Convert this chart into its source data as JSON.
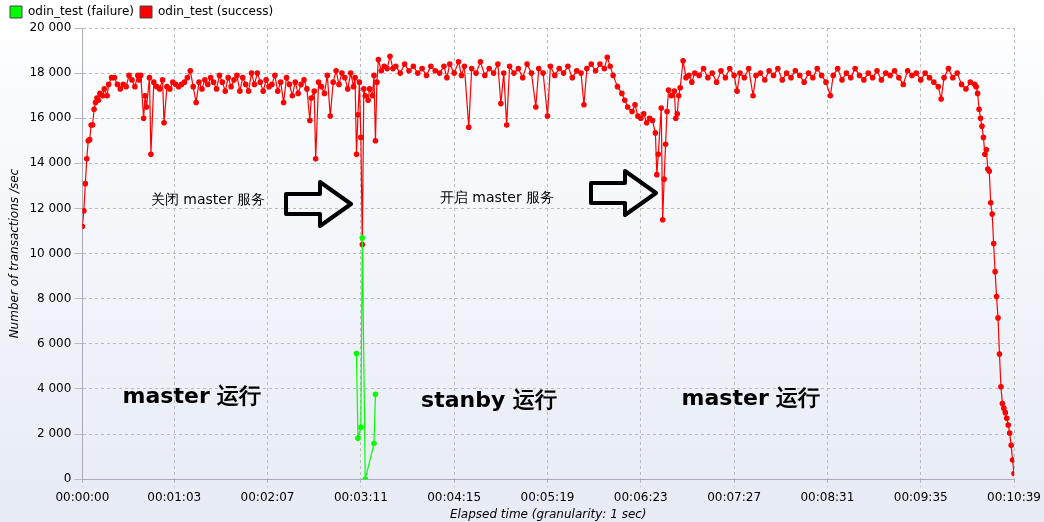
{
  "chart_data": {
    "type": "line",
    "xlabel": "Elapsed time (granularity: 1 sec)",
    "ylabel": "Number of transactions /sec",
    "xlim": [
      0,
      639
    ],
    "xticks": [
      {
        "value": 0,
        "label": "00:00:00"
      },
      {
        "value": 63,
        "label": "00:01:03"
      },
      {
        "value": 127,
        "label": "00:02:07"
      },
      {
        "value": 191,
        "label": "00:03:11"
      },
      {
        "value": 255,
        "label": "00:04:15"
      },
      {
        "value": 319,
        "label": "00:05:19"
      },
      {
        "value": 383,
        "label": "00:06:23"
      },
      {
        "value": 447,
        "label": "00:07:27"
      },
      {
        "value": 511,
        "label": "00:08:31"
      },
      {
        "value": 575,
        "label": "00:09:35"
      },
      {
        "value": 639,
        "label": "00:10:39"
      }
    ],
    "ylim": [
      0,
      20000
    ],
    "yticks": [
      0,
      {
        "value": 2000,
        "label": "2 000"
      },
      {
        "value": 4000,
        "label": "4 000"
      },
      {
        "value": 6000,
        "label": "6 000"
      },
      {
        "value": 8000,
        "label": "8 000"
      },
      {
        "value": 10000,
        "label": "10 000"
      },
      {
        "value": 12000,
        "label": "12 000"
      },
      {
        "value": 14000,
        "label": "14 000"
      },
      {
        "value": 16000,
        "label": "16 000"
      },
      {
        "value": 18000,
        "label": "18 000"
      },
      {
        "value": 20000,
        "label": "20 000"
      }
    ],
    "grid": true,
    "legend": "top left",
    "marker": "circle",
    "line_style": "solid",
    "series": [
      {
        "name": "odin_test (failure)",
        "color": "#00ff00",
        "x": [
          188,
          189,
          191,
          192,
          194,
          200,
          201
        ],
        "values": [
          5570,
          1820,
          2300,
          10700,
          0,
          1580,
          3760
        ]
      },
      {
        "name": "odin_test (success)",
        "color": "#ff0000",
        "x": [
          0,
          1,
          2,
          3,
          4,
          5,
          6,
          7,
          8,
          9,
          10,
          11,
          12,
          14,
          15,
          17,
          18,
          20,
          22,
          24,
          26,
          28,
          30,
          32,
          34,
          36,
          38,
          39,
          40,
          42,
          43,
          44,
          46,
          47,
          49,
          51,
          53,
          55,
          56,
          58,
          60,
          62,
          64,
          66,
          68,
          70,
          72,
          74,
          76,
          78,
          80,
          82,
          84,
          86,
          88,
          90,
          92,
          94,
          96,
          98,
          100,
          102,
          104,
          106,
          108,
          110,
          112,
          114,
          116,
          118,
          120,
          122,
          124,
          126,
          128,
          130,
          132,
          134,
          136,
          138,
          140,
          142,
          144,
          146,
          148,
          150,
          152,
          154,
          156,
          157,
          159,
          160,
          162,
          164,
          166,
          168,
          170,
          172,
          174,
          176,
          178,
          180,
          182,
          184,
          186,
          187,
          188,
          189,
          190,
          191,
          192,
          193,
          194,
          196,
          197,
          199,
          200,
          201,
          202,
          203,
          205,
          207,
          209,
          211,
          213,
          215,
          218,
          221,
          224,
          227,
          230,
          233,
          236,
          239,
          242,
          245,
          248,
          250,
          252,
          255,
          258,
          260,
          262,
          265,
          267,
          270,
          273,
          276,
          279,
          282,
          285,
          287,
          289,
          291,
          293,
          296,
          299,
          302,
          305,
          308,
          311,
          313,
          316,
          319,
          321,
          324,
          327,
          330,
          333,
          336,
          339,
          342,
          344,
          346,
          349,
          352,
          355,
          358,
          360,
          362,
          364,
          367,
          370,
          372,
          374,
          377,
          379,
          381,
          383,
          385,
          387,
          389,
          391,
          393,
          394,
          395,
          397,
          398,
          399,
          400,
          401,
          402,
          404,
          406,
          407,
          408,
          409,
          410,
          412,
          414,
          416,
          418,
          420,
          423,
          426,
          429,
          432,
          435,
          438,
          441,
          444,
          447,
          449,
          451,
          454,
          457,
          460,
          462,
          465,
          468,
          471,
          474,
          477,
          480,
          483,
          486,
          489,
          492,
          495,
          498,
          501,
          504,
          507,
          510,
          513,
          515,
          518,
          521,
          524,
          527,
          530,
          533,
          536,
          539,
          542,
          545,
          548,
          551,
          554,
          557,
          560,
          563,
          566,
          569,
          572,
          575,
          578,
          581,
          584,
          587,
          589,
          591,
          594,
          597,
          600,
          603,
          606,
          609,
          612,
          613,
          614,
          615,
          616,
          617,
          618,
          619,
          620,
          621,
          622,
          623,
          624,
          625,
          626,
          627,
          628,
          629,
          630,
          631,
          632,
          633,
          634,
          635,
          636,
          637,
          638,
          639
        ],
        "values": [
          11200,
          11900,
          13100,
          14200,
          15000,
          15050,
          15700,
          15700,
          16400,
          16700,
          16900,
          16800,
          17100,
          17000,
          17300,
          17000,
          17500,
          17800,
          17800,
          17500,
          17300,
          17500,
          17400,
          17900,
          17700,
          17400,
          17900,
          17700,
          17900,
          16000,
          17000,
          16500,
          17800,
          14400,
          17600,
          17400,
          17300,
          17700,
          15800,
          17400,
          17300,
          17600,
          17500,
          17400,
          17500,
          17600,
          17800,
          18100,
          17400,
          16700,
          17600,
          17300,
          17700,
          17500,
          17800,
          17600,
          17300,
          17900,
          17600,
          17200,
          17800,
          17400,
          17700,
          17900,
          17200,
          17800,
          17500,
          17200,
          18000,
          17500,
          18000,
          17600,
          17200,
          17700,
          17400,
          17500,
          17900,
          17200,
          17600,
          16700,
          17800,
          17500,
          17000,
          17600,
          17100,
          17500,
          17700,
          17300,
          15900,
          16900,
          17200,
          14200,
          17600,
          17400,
          17100,
          17900,
          16100,
          17600,
          18100,
          17500,
          18000,
          17800,
          17300,
          18000,
          17400,
          17800,
          14400,
          16150,
          17600,
          15150,
          10400,
          17300,
          17000,
          16800,
          17300,
          17000,
          17900,
          15000,
          17600,
          18600,
          18100,
          18300,
          18200,
          18750,
          18200,
          18300,
          18000,
          18400,
          18100,
          18300,
          18000,
          18200,
          17900,
          18300,
          18100,
          18000,
          18300,
          17800,
          18400,
          18000,
          18500,
          17900,
          18300,
          15600,
          18200,
          18000,
          18500,
          17900,
          18200,
          18000,
          18400,
          16650,
          18000,
          15700,
          18300,
          18000,
          18200,
          17800,
          18400,
          18000,
          16500,
          18200,
          18000,
          16100,
          18300,
          17900,
          18200,
          18000,
          18300,
          17800,
          18100,
          18000,
          16600,
          18200,
          18400,
          18100,
          18400,
          18200,
          18700,
          18300,
          17900,
          17400,
          17100,
          16800,
          16500,
          16300,
          16600,
          16100,
          16000,
          16200,
          15800,
          16000,
          15900,
          15350,
          13500,
          14400,
          16450,
          11500,
          13300,
          14850,
          16300,
          17250,
          17000,
          17200,
          16000,
          16200,
          17000,
          17350,
          18550,
          17800,
          17900,
          17600,
          18000,
          17900,
          18200,
          17800,
          18000,
          17600,
          18100,
          17800,
          18200,
          17900,
          17200,
          18000,
          17800,
          18200,
          17000,
          17900,
          18000,
          17700,
          18100,
          17900,
          18200,
          17700,
          18000,
          17800,
          18100,
          17900,
          17600,
          18000,
          17800,
          18200,
          17900,
          17600,
          17000,
          17900,
          18200,
          17700,
          18000,
          17800,
          18200,
          17900,
          17700,
          18000,
          17800,
          18100,
          17700,
          18000,
          17900,
          18100,
          17800,
          17500,
          18100,
          17900,
          18000,
          17700,
          18000,
          17800,
          17600,
          17400,
          16850,
          17800,
          18200,
          17800,
          18000,
          17500,
          17300,
          17600,
          17500,
          17400,
          17100,
          16400,
          16000,
          15650,
          15150,
          14400,
          14600,
          13750,
          13650,
          12250,
          11750,
          10450,
          9200,
          8100,
          7150,
          5550,
          4100,
          3350,
          3150,
          2950,
          2700,
          2400,
          2050,
          1500,
          850,
          250
        ]
      }
    ],
    "annotations": [
      "关闭 master 服务",
      "开启 master 服务",
      "master 运行",
      "stanby 运行",
      "master 运行"
    ]
  }
}
